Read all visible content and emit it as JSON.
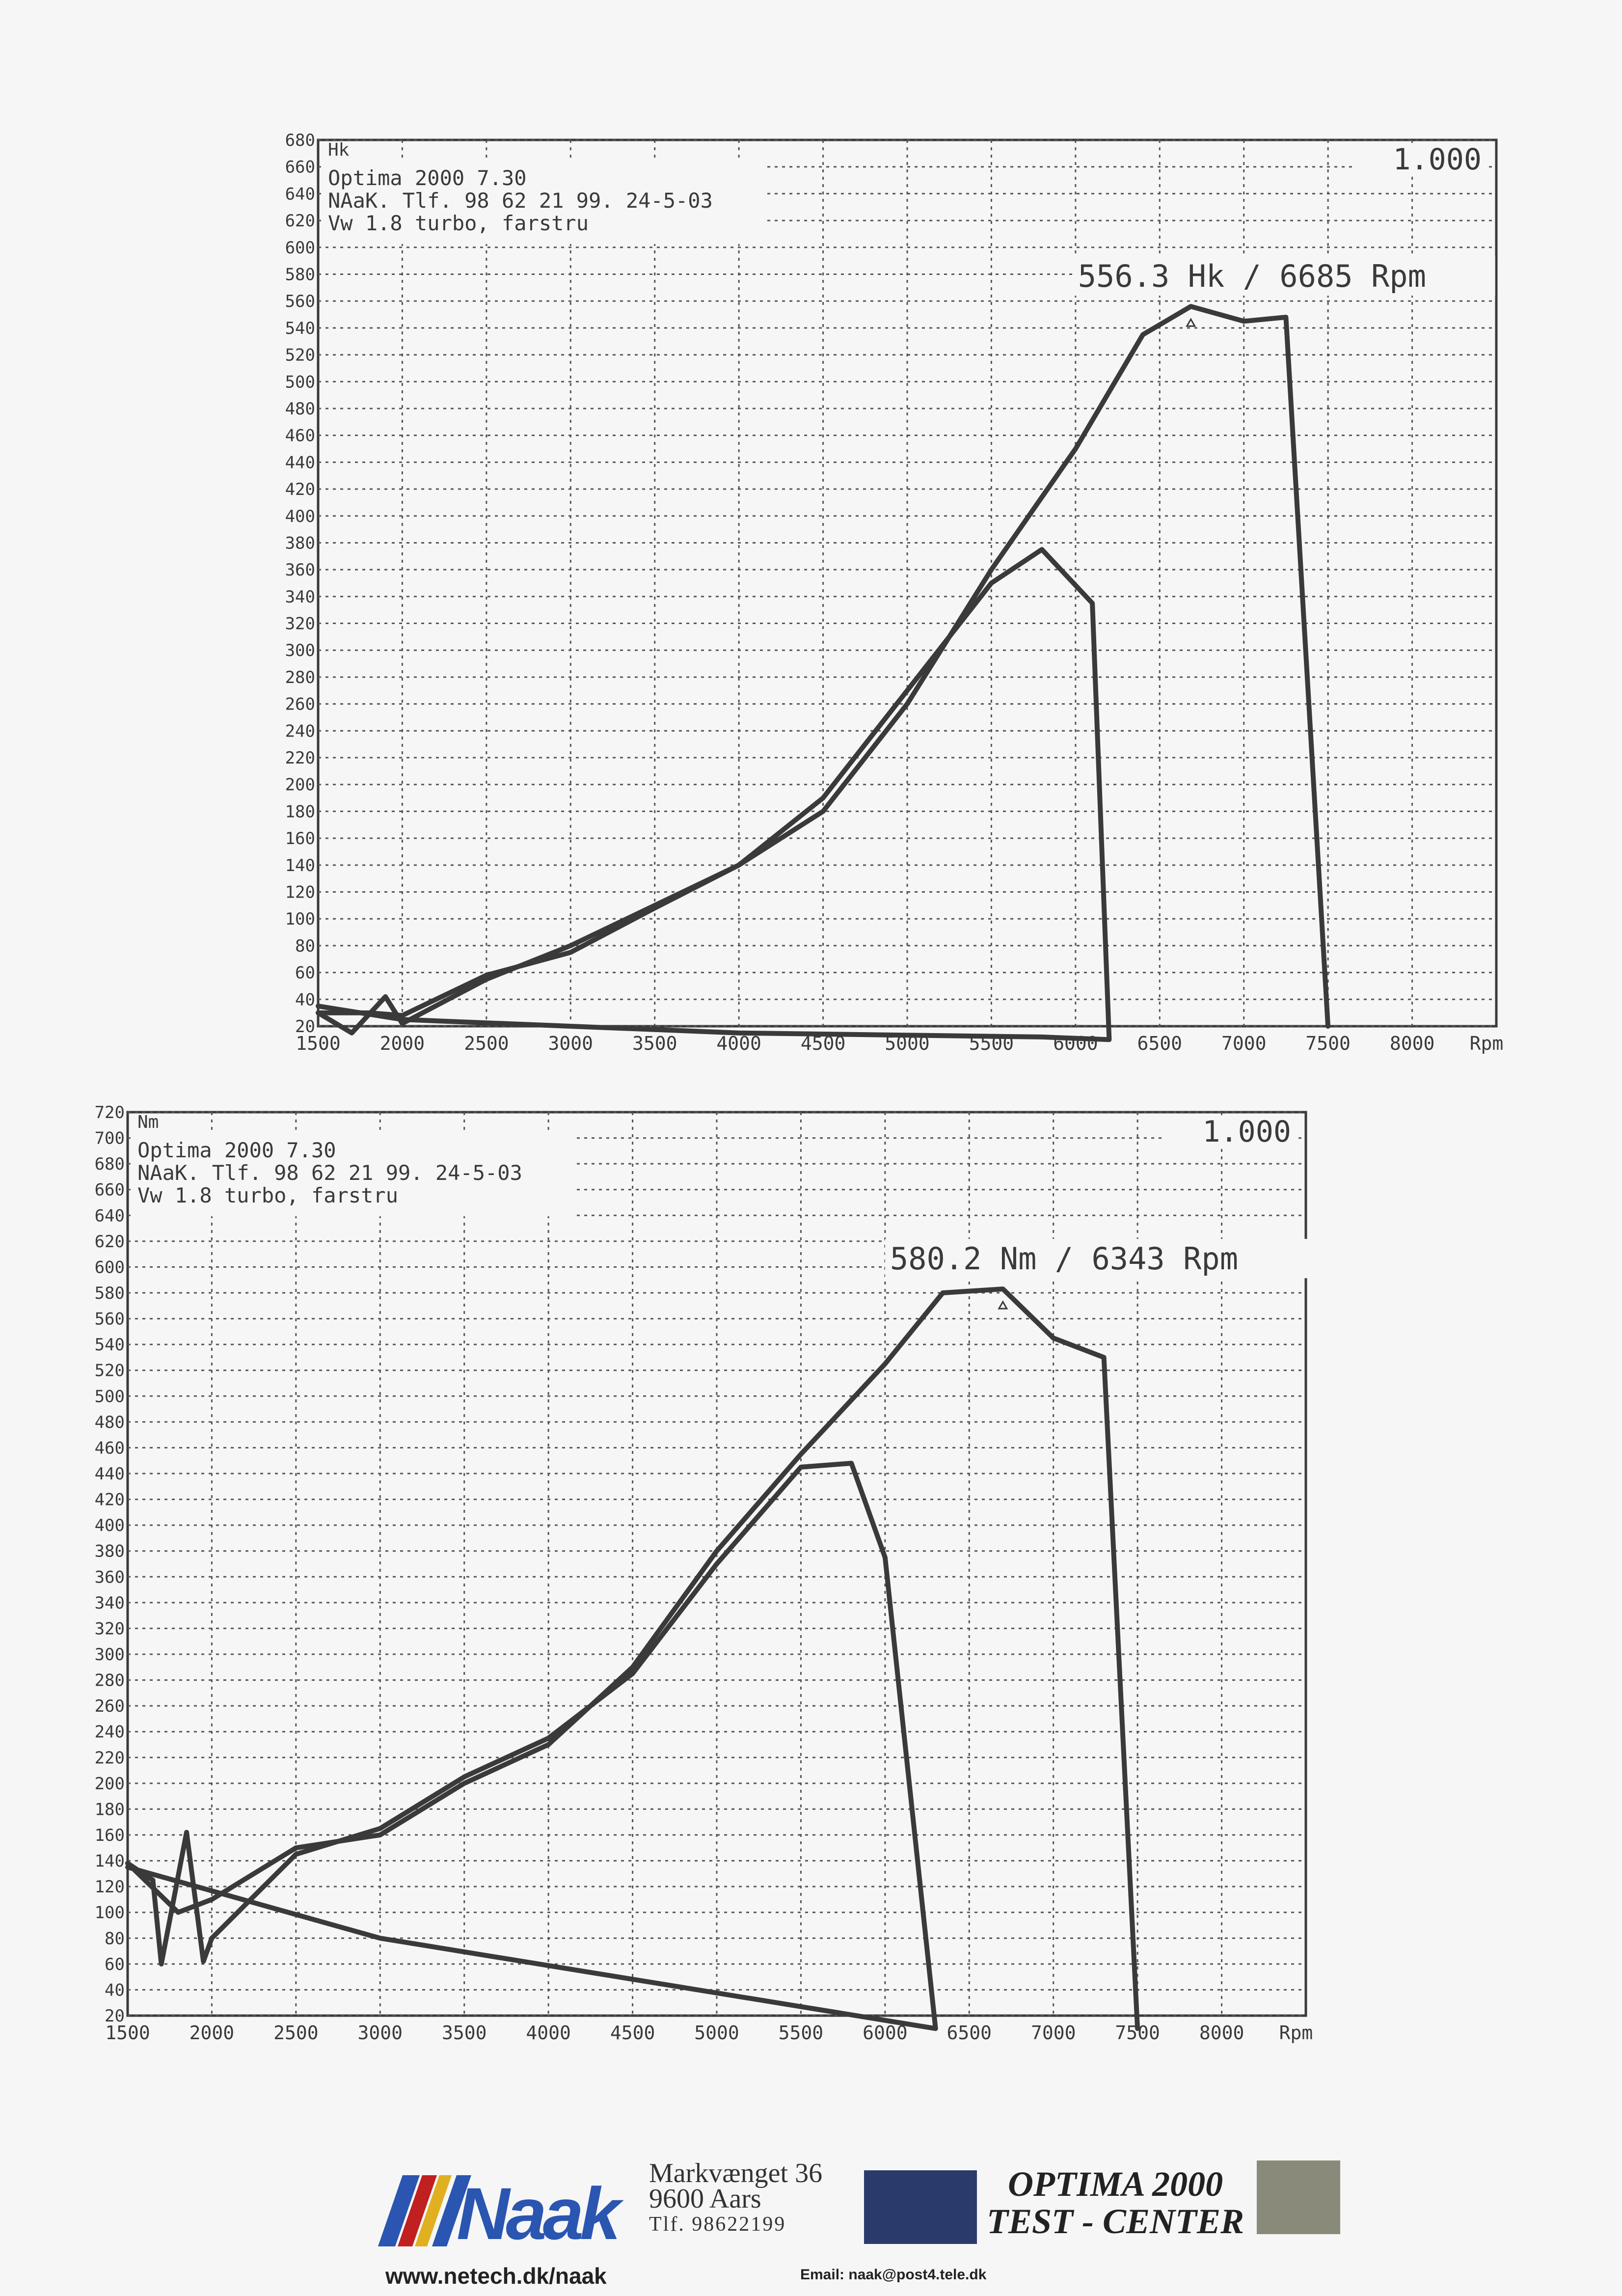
{
  "chart_data": [
    {
      "type": "line",
      "unit_label": "Hk",
      "x_unit": "Rpm",
      "ylim": [
        20,
        680
      ],
      "xlim": [
        1500,
        8500
      ],
      "y_ticks": [
        20,
        40,
        60,
        80,
        100,
        120,
        140,
        160,
        180,
        200,
        220,
        240,
        260,
        280,
        300,
        320,
        340,
        360,
        380,
        400,
        420,
        440,
        460,
        480,
        500,
        520,
        540,
        560,
        580,
        600,
        620,
        640,
        660,
        680
      ],
      "x_ticks": [
        1500,
        2000,
        2500,
        3000,
        3500,
        4000,
        4500,
        5000,
        5500,
        6000,
        6500,
        7000,
        7500,
        8000
      ],
      "header_lines": [
        "Optima 2000 7.30",
        "NAaK. Tlf. 98 62 21 99. 24-5-03",
        "Vw 1.8 turbo, farstru"
      ],
      "scale_label": "1.000",
      "peak_label": "556.3 Hk / 6685 Rpm",
      "grid": true,
      "series": [
        {
          "values": [
            [
              1500,
              30
            ],
            [
              1700,
              15
            ],
            [
              1900,
              42
            ],
            [
              2000,
              22
            ],
            [
              2500,
              55
            ],
            [
              3000,
              80
            ],
            [
              3500,
              110
            ],
            [
              4000,
              140
            ],
            [
              4500,
              190
            ],
            [
              5000,
              270
            ],
            [
              5500,
              350
            ],
            [
              5800,
              375
            ],
            [
              6100,
              335
            ],
            [
              6200,
              10
            ],
            [
              5800,
              12
            ],
            [
              4000,
              15
            ],
            [
              2000,
              25
            ],
            [
              1500,
              35
            ]
          ]
        },
        {
          "values": [
            [
              1500,
              30
            ],
            [
              1800,
              30
            ],
            [
              2000,
              28
            ],
            [
              2500,
              58
            ],
            [
              3000,
              75
            ],
            [
              3500,
              108
            ],
            [
              4000,
              140
            ],
            [
              4500,
              180
            ],
            [
              5000,
              260
            ],
            [
              5500,
              360
            ],
            [
              6000,
              450
            ],
            [
              6400,
              535
            ],
            [
              6685,
              556
            ],
            [
              7000,
              545
            ],
            [
              7250,
              548
            ],
            [
              7500,
              20
            ]
          ]
        }
      ]
    },
    {
      "type": "line",
      "unit_label": "Nm",
      "x_unit": "Rpm",
      "ylim": [
        20,
        720
      ],
      "xlim": [
        1500,
        8500
      ],
      "y_ticks": [
        20,
        40,
        60,
        80,
        100,
        120,
        140,
        160,
        180,
        200,
        220,
        240,
        260,
        280,
        300,
        320,
        340,
        360,
        380,
        400,
        420,
        440,
        460,
        480,
        500,
        520,
        540,
        560,
        580,
        600,
        620,
        640,
        660,
        680,
        700,
        720
      ],
      "x_ticks": [
        1500,
        2000,
        2500,
        3000,
        3500,
        4000,
        4500,
        5000,
        5500,
        6000,
        6500,
        7000,
        7500,
        8000
      ],
      "header_lines": [
        "Optima 2000 7.30",
        "NAaK. Tlf. 98 62 21 99. 24-5-03",
        "Vw 1.8 turbo, farstru"
      ],
      "scale_label": "1.000",
      "peak_label": "580.2 Nm / 6343 Rpm",
      "grid": true,
      "series": [
        {
          "values": [
            [
              1500,
              138
            ],
            [
              1650,
              125
            ],
            [
              1700,
              60
            ],
            [
              1850,
              162
            ],
            [
              1950,
              62
            ],
            [
              2000,
              80
            ],
            [
              2500,
              145
            ],
            [
              3000,
              165
            ],
            [
              3500,
              205
            ],
            [
              4000,
              235
            ],
            [
              4500,
              285
            ],
            [
              5000,
              370
            ],
            [
              5500,
              445
            ],
            [
              5800,
              448
            ],
            [
              6000,
              375
            ],
            [
              6300,
              10
            ],
            [
              3000,
              80
            ],
            [
              1500,
              135
            ]
          ]
        },
        {
          "values": [
            [
              1500,
              138
            ],
            [
              1800,
              100
            ],
            [
              2000,
              110
            ],
            [
              2500,
              150
            ],
            [
              3000,
              160
            ],
            [
              3500,
              200
            ],
            [
              4000,
              230
            ],
            [
              4500,
              290
            ],
            [
              5000,
              380
            ],
            [
              5500,
              455
            ],
            [
              6000,
              525
            ],
            [
              6343,
              580
            ],
            [
              6700,
              583
            ],
            [
              7000,
              545
            ],
            [
              7300,
              530
            ],
            [
              7500,
              10
            ]
          ]
        }
      ]
    }
  ],
  "footer": {
    "logo_text": "Naak",
    "address_street": "Markvænget 36",
    "address_city": "9600 Aars",
    "address_phone": "Tlf. 98622199",
    "brand_line1": "OPTIMA 2000",
    "brand_line2": "TEST - CENTER",
    "website": "www.netech.dk/naak",
    "email": "Email: naak@post4.tele.dk"
  },
  "colors": {
    "line": "#3a3a3a",
    "grid": "#555555",
    "paper": "#f6f6f6",
    "logo_blue": "#2a55b0",
    "logo_red": "#c02020",
    "logo_yellow": "#e0b020"
  }
}
